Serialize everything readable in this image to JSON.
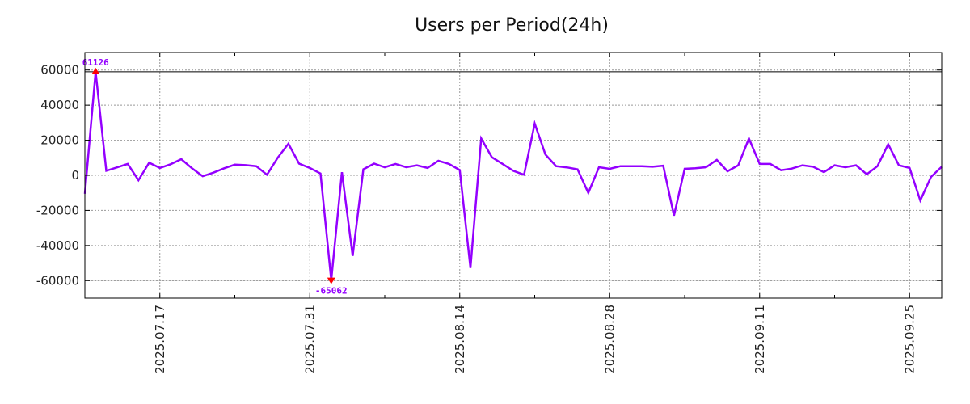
{
  "chart_data": {
    "type": "line",
    "title": "Users per Period(24h)",
    "xlabel": "",
    "ylabel": "",
    "x_start": "2025.07.10",
    "x_step_days": 1,
    "xlim_days": [
      0,
      80
    ],
    "ylim": [
      -70000,
      70000
    ],
    "grid": true,
    "yticks": [
      60000,
      40000,
      20000,
      0,
      -20000,
      -40000,
      -60000
    ],
    "ytick_labels": [
      "60000",
      "40000",
      "20000",
      "0",
      "-20000",
      "-40000",
      "-60000"
    ],
    "xticks_days": [
      7,
      21,
      35,
      49,
      63,
      77
    ],
    "xtick_labels": [
      "2025.07.17",
      "2025.07.31",
      "2025.08.14",
      "2025.08.28",
      "2025.09.11",
      "2025.09.25"
    ],
    "minor_xticks_days": [
      14,
      28,
      42,
      56,
      70
    ],
    "series": [
      {
        "name": "Users",
        "color": "#9400ff",
        "values": [
          -10500,
          59000,
          2600,
          4500,
          6500,
          -2800,
          7200,
          4200,
          6300,
          9200,
          4000,
          -500,
          1500,
          4000,
          6100,
          5800,
          5200,
          300,
          10000,
          18000,
          6700,
          4200,
          1000,
          -59700,
          1800,
          -45900,
          3400,
          6700,
          4600,
          6500,
          4600,
          5700,
          4200,
          8300,
          6500,
          3000,
          -52800,
          21000,
          10300,
          6500,
          2600,
          300,
          29500,
          11800,
          5200,
          4500,
          3400,
          -10000,
          4600,
          3700,
          5200,
          5200,
          5200,
          4900,
          5500,
          -23000,
          3700,
          4000,
          4600,
          8800,
          2300,
          5700,
          21000,
          6500,
          6500,
          2900,
          3800,
          5700,
          4900,
          1800,
          5700,
          4600,
          5700,
          600,
          5200,
          17700,
          5700,
          4200,
          -14300,
          -900,
          4900
        ]
      }
    ],
    "annotations": {
      "max": {
        "label": "61126",
        "day": 1,
        "color": "#ff0000"
      },
      "min": {
        "label": "-65062",
        "day": 23,
        "color": "#ff0000"
      }
    }
  }
}
